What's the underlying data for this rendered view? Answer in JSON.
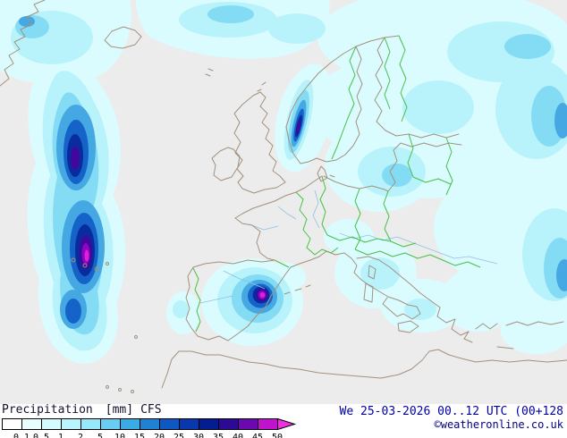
{
  "footer": {
    "title": "Precipitation",
    "units": "[mm]",
    "model": "CFS",
    "datetime": "We 25-03-2026 00..12 UTC (00+128",
    "copyright": "©weatheronline.co.uk"
  },
  "legend": {
    "ticks": [
      "0.1",
      "0.5",
      "1",
      "2",
      "5",
      "10",
      "15",
      "20",
      "25",
      "30",
      "35",
      "40",
      "45",
      "50"
    ],
    "segment_colors": [
      "#ffffff",
      "#e9feff",
      "#d4fbff",
      "#baf4fd",
      "#97e8f9",
      "#68cdf0",
      "#3aabe4",
      "#1f82d4",
      "#0d58c2",
      "#0937ae",
      "#051d93",
      "#2c0a96",
      "#6b08b0",
      "#c013cd"
    ],
    "arrow_color": "#ef2fe0"
  },
  "map_colors": {
    "background": "#ececec",
    "coastline": "#a2917e",
    "country_border": "#44c144",
    "river": "#8fc0e0",
    "precip_light": "#dbfcff",
    "precip_heavy": "#e01fd8"
  }
}
